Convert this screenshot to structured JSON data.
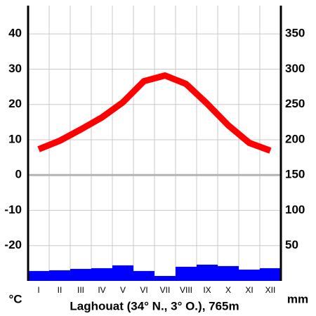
{
  "chart_data": {
    "type": "climate",
    "title": "Laghouat (34° N., 3° O.), 765m",
    "y_label": "°C",
    "y2_label": "mm",
    "categories": [
      "I",
      "II",
      "III",
      "IV",
      "V",
      "VI",
      "VII",
      "VIII",
      "IX",
      "X",
      "XI",
      "XII"
    ],
    "series": [
      {
        "name": "temperature",
        "color": "#ff0000",
        "values": [
          7.3,
          9.7,
          12.9,
          16.3,
          20.6,
          26.6,
          28.2,
          25.8,
          20.2,
          14.1,
          9.1,
          6.9
        ]
      },
      {
        "name": "precipitation",
        "color": "#0000ff",
        "axis": "y2",
        "values": [
          14,
          15,
          17,
          18,
          22,
          14,
          7,
          20,
          23,
          21,
          16,
          18
        ]
      }
    ],
    "ylim": [
      -30,
      48
    ],
    "yticks": [
      -20,
      -10,
      0,
      10,
      20,
      30,
      40
    ],
    "y2lim": [
      0,
      390
    ],
    "y2ticks": [
      50,
      100,
      150,
      200,
      250,
      300,
      350
    ],
    "grid": true
  }
}
